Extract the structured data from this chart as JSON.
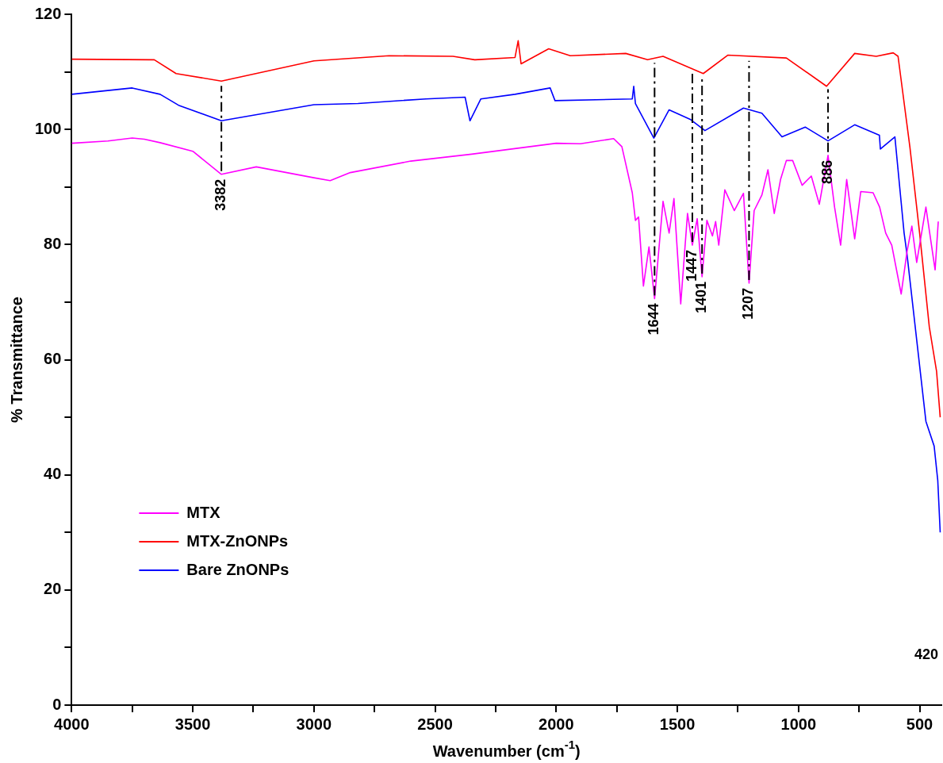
{
  "chart_data": {
    "type": "line",
    "xlabel": "Wavenumber (cm$^{-1}$)",
    "ylabel": "% Transmittance",
    "xlim": [
      4000,
      410
    ],
    "xticks": [
      4000,
      {
        "value": 3750,
        "label": null
      },
      3500,
      {
        "value": 3250,
        "label": null
      },
      3000,
      {
        "value": 2750,
        "label": null
      },
      2500,
      {
        "value": 2250,
        "label": null
      },
      2000,
      {
        "value": 1750,
        "label": null
      },
      1500,
      {
        "value": 1250,
        "label": null
      },
      1000,
      {
        "value": 750,
        "label": null
      },
      500
    ],
    "ylim": [
      0,
      120
    ],
    "yticks": [
      0,
      {
        "value": 10,
        "label": null
      },
      20,
      {
        "value": 30,
        "label": null
      },
      40,
      {
        "value": 50,
        "label": null
      },
      60,
      {
        "value": 70,
        "label": null
      },
      80,
      {
        "value": 90,
        "label": null
      },
      100,
      {
        "value": 110,
        "label": null
      },
      120
    ],
    "grid": false,
    "legend": "bottom left",
    "marker": "none",
    "line_style": "solid",
    "annotations": [
      {
        "text": "3382",
        "x": 3382,
        "y": 92.2
      },
      {
        "text": "1644",
        "x": 1594,
        "y": 70.6
      },
      {
        "text": "1447",
        "x": 1438,
        "y": 79.9
      },
      {
        "text": "1401",
        "x": 1398,
        "y": 74.4
      },
      {
        "text": "1207",
        "x": 1204,
        "y": 73.3
      },
      {
        "text": "886",
        "x": 878,
        "y": 95.5
      },
      "420"
    ],
    "series": [
      {
        "name": "MTX",
        "color": "#ff00ff",
        "x": [
          4000,
          3850,
          3750,
          3700,
          3635,
          3500,
          3382,
          3238,
          3000,
          2933,
          2850,
          2600,
          2349,
          2000,
          1900,
          1763,
          1729,
          1686,
          1673,
          1660,
          1640,
          1617,
          1594,
          1559,
          1534,
          1514,
          1486,
          1458,
          1438,
          1418,
          1398,
          1378,
          1355,
          1342,
          1329,
          1304,
          1265,
          1227,
          1204,
          1183,
          1151,
          1126,
          1100,
          1074,
          1050,
          1024,
          985,
          947,
          914,
          878,
          851,
          826,
          801,
          768,
          743,
          692,
          665,
          640,
          615,
          576,
          552,
          532,
          512,
          474,
          436,
          423
        ],
        "values": [
          97.6,
          98,
          98.5,
          98.3,
          97.7,
          96.2,
          92.2,
          93.5,
          91.6,
          91.1,
          92.5,
          94.5,
          95.7,
          97.6,
          97.5,
          98.4,
          97,
          89,
          84.2,
          84.8,
          72.8,
          79.6,
          70.6,
          87.5,
          82,
          88,
          69.7,
          85.4,
          79.9,
          84.5,
          74.4,
          84.2,
          81.5,
          84,
          79.9,
          89.5,
          85.9,
          88.9,
          73.3,
          85.9,
          88.6,
          93,
          85.4,
          91.3,
          94.6,
          94.6,
          90.3,
          91.9,
          87,
          95.5,
          86.5,
          79.9,
          91.3,
          81,
          89.2,
          89,
          86.5,
          82,
          79.9,
          71.4,
          78.8,
          83.2,
          76.9,
          86.5,
          75.6,
          84
        ]
      },
      {
        "name": "MTX-ZnONPs",
        "color": "#ff0000",
        "x": [
          4000,
          3659,
          3569,
          3382,
          3000,
          2690,
          2426,
          2336,
          2170,
          2157,
          2145,
          2031,
          1942,
          1713,
          1623,
          1559,
          1393,
          1292,
          1050,
          884,
          768,
          679,
          609,
          589,
          540,
          500,
          460,
          430,
          415
        ],
        "values": [
          112.2,
          112.1,
          109.7,
          108.4,
          111.9,
          112.8,
          112.7,
          112.1,
          112.5,
          115.4,
          111.4,
          114,
          112.8,
          113.2,
          112.1,
          112.7,
          109.7,
          112.9,
          112.4,
          107.5,
          113.2,
          112.7,
          113.3,
          112.7,
          96.9,
          82,
          65.7,
          58,
          50
        ]
      },
      {
        "name": "Bare ZnONPs",
        "color": "#0000ff",
        "x": [
          4000,
          3750,
          3635,
          3559,
          3382,
          3000,
          2818,
          2538,
          2376,
          2356,
          2311,
          2170,
          2025,
          2005,
          1686,
          1680,
          1673,
          1597,
          1534,
          1445,
          1386,
          1227,
          1151,
          1068,
          972,
          878,
          768,
          666,
          662,
          602,
          564,
          552,
          474,
          440,
          425,
          415
        ],
        "values": [
          106.1,
          107.2,
          106.1,
          104.2,
          101.5,
          104.3,
          104.5,
          105.3,
          105.6,
          101.5,
          105.3,
          106.1,
          107.2,
          105,
          105.3,
          107.5,
          104.5,
          98.5,
          103.4,
          101.7,
          99.8,
          103.7,
          102.8,
          98.7,
          100.4,
          98,
          100.8,
          99,
          96.6,
          98.7,
          82,
          78.3,
          49.3,
          45,
          39,
          30
        ]
      }
    ]
  }
}
